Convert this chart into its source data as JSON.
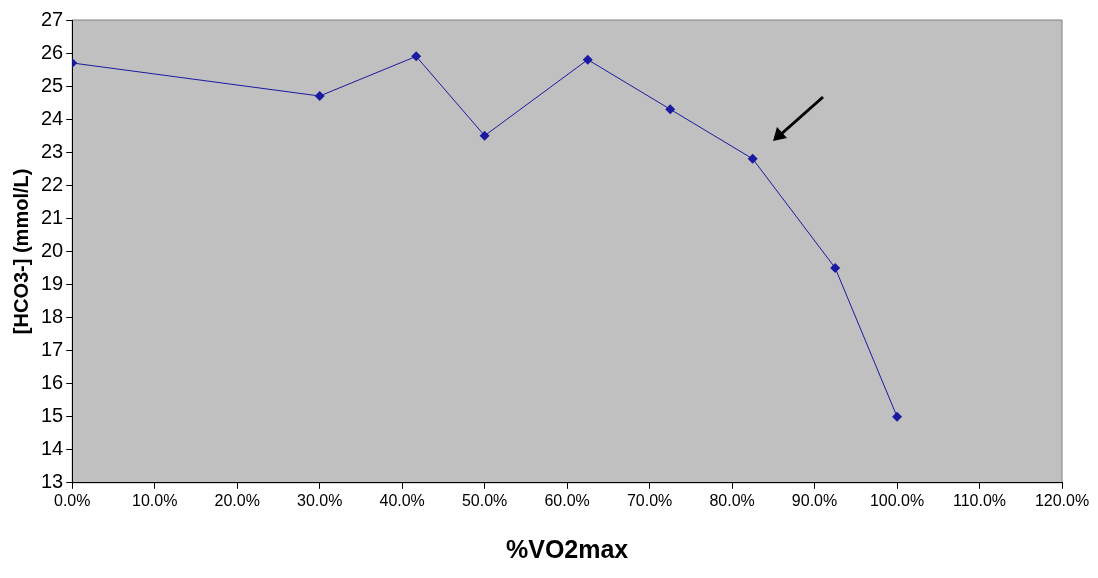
{
  "chart_data": {
    "type": "line",
    "xlabel": "%VO2max",
    "ylabel": "[HCO3-] (mmol/L)",
    "x": [
      0,
      30,
      41.7,
      50,
      62.5,
      72.5,
      82.5,
      92.5,
      100
    ],
    "series": [
      {
        "color": "#1a1aa0",
        "values": [
          25.7,
          24.7,
          25.9,
          23.5,
          25.8,
          24.3,
          22.8,
          19.5,
          15.0
        ]
      }
    ],
    "xlim": [
      0,
      120
    ],
    "xticks": [
      {
        "value": 0,
        "label": "0.0%"
      },
      {
        "value": 10,
        "label": "10.0%"
      },
      {
        "value": 20,
        "label": "20.0%"
      },
      {
        "value": 30,
        "label": "30.0%"
      },
      {
        "value": 40,
        "label": "40.0%"
      },
      {
        "value": 50,
        "label": "50.0%"
      },
      {
        "value": 60,
        "label": "60.0%"
      },
      {
        "value": 70,
        "label": "70.0%"
      },
      {
        "value": 80,
        "label": "80.0%"
      },
      {
        "value": 90,
        "label": "90.0%"
      },
      {
        "value": 100,
        "label": "100.0%"
      },
      {
        "value": 110,
        "label": "110.0%"
      },
      {
        "value": 120,
        "label": "120.0%"
      }
    ],
    "ylim": [
      13,
      27
    ],
    "yticks": [
      13,
      14,
      15,
      16,
      17,
      18,
      19,
      20,
      21,
      22,
      23,
      24,
      25,
      26,
      27
    ],
    "marker": "diamond",
    "line_style": "solid"
  }
}
